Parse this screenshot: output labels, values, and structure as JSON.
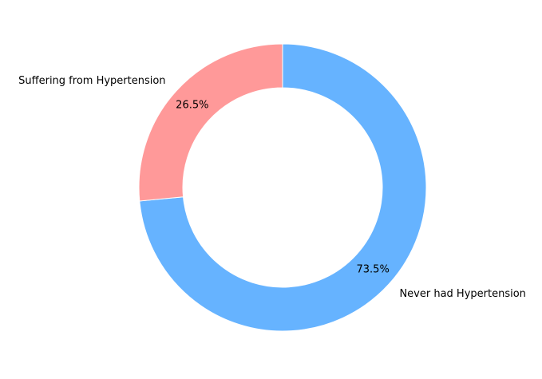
{
  "chart_data": {
    "type": "pie",
    "donut": true,
    "categories": [
      "Never had Hypertension",
      "Suffering from Hypertension"
    ],
    "values": [
      73.5,
      26.5
    ],
    "percent_labels": [
      "73.5%",
      "26.5%"
    ],
    "colors": [
      "#66b3ff",
      "#ff9999"
    ],
    "start": "top, clockwise",
    "title": "",
    "legend": "none"
  }
}
